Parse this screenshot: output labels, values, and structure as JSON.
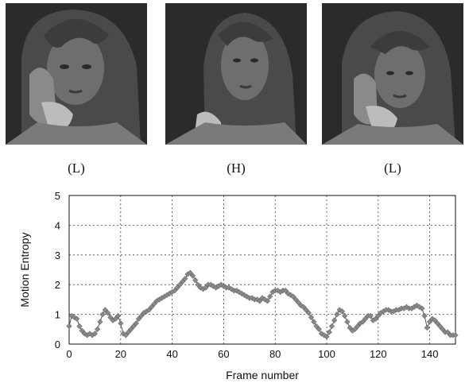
{
  "frames": [
    {
      "label": "(L)",
      "image": "woman-on-phone-photo-1"
    },
    {
      "label": "(H)",
      "image": "woman-on-phone-photo-2"
    },
    {
      "label": "(L)",
      "image": "woman-on-phone-photo-3"
    }
  ],
  "chart_data": {
    "type": "line",
    "title": "",
    "xlabel": "Frame number",
    "ylabel": "Motion Entropy",
    "xlim": [
      0,
      150
    ],
    "ylim": [
      0,
      5
    ],
    "xticks": [
      0,
      20,
      40,
      60,
      80,
      100,
      120,
      140
    ],
    "yticks": [
      0,
      1,
      2,
      3,
      4,
      5
    ],
    "grid": true,
    "marker": "diamond",
    "series": [
      {
        "name": "",
        "x": [
          0,
          1,
          2,
          3,
          4,
          5,
          6,
          7,
          8,
          9,
          10,
          11,
          12,
          13,
          14,
          15,
          16,
          17,
          18,
          19,
          20,
          21,
          22,
          23,
          24,
          25,
          26,
          27,
          28,
          29,
          30,
          31,
          32,
          33,
          34,
          35,
          36,
          37,
          38,
          39,
          40,
          41,
          42,
          43,
          44,
          45,
          46,
          47,
          48,
          49,
          50,
          51,
          52,
          53,
          54,
          55,
          56,
          57,
          58,
          59,
          60,
          61,
          62,
          63,
          64,
          65,
          66,
          67,
          68,
          69,
          70,
          71,
          72,
          73,
          74,
          75,
          76,
          77,
          78,
          79,
          80,
          81,
          82,
          83,
          84,
          85,
          86,
          87,
          88,
          89,
          90,
          91,
          92,
          93,
          94,
          95,
          96,
          97,
          98,
          99,
          100,
          101,
          102,
          103,
          104,
          105,
          106,
          107,
          108,
          109,
          110,
          111,
          112,
          113,
          114,
          115,
          116,
          117,
          118,
          119,
          120,
          121,
          122,
          123,
          124,
          125,
          126,
          127,
          128,
          129,
          130,
          131,
          132,
          133,
          134,
          135,
          136,
          137,
          138,
          139,
          140,
          141,
          142,
          143,
          144,
          145,
          146,
          147,
          148,
          149,
          150
        ],
        "y": [
          0.6,
          0.95,
          0.9,
          0.85,
          0.6,
          0.45,
          0.35,
          0.3,
          0.35,
          0.3,
          0.35,
          0.5,
          0.75,
          1.0,
          1.15,
          1.05,
          0.9,
          0.8,
          0.85,
          0.95,
          0.7,
          0.35,
          0.3,
          0.4,
          0.5,
          0.6,
          0.7,
          0.85,
          0.95,
          1.05,
          1.1,
          1.15,
          1.25,
          1.35,
          1.45,
          1.5,
          1.55,
          1.6,
          1.65,
          1.7,
          1.75,
          1.8,
          1.9,
          2.0,
          2.1,
          2.2,
          2.35,
          2.4,
          2.3,
          2.15,
          2.0,
          1.9,
          1.85,
          1.9,
          2.0,
          2.0,
          1.95,
          1.9,
          1.95,
          2.0,
          1.95,
          1.9,
          1.9,
          1.85,
          1.8,
          1.8,
          1.75,
          1.7,
          1.65,
          1.6,
          1.55,
          1.55,
          1.5,
          1.5,
          1.45,
          1.55,
          1.5,
          1.45,
          1.6,
          1.75,
          1.8,
          1.8,
          1.75,
          1.8,
          1.8,
          1.7,
          1.65,
          1.6,
          1.5,
          1.4,
          1.3,
          1.25,
          1.15,
          1.05,
          0.9,
          0.75,
          0.6,
          0.5,
          0.35,
          0.3,
          0.25,
          0.4,
          0.6,
          0.8,
          1.0,
          1.15,
          1.1,
          0.95,
          0.75,
          0.55,
          0.45,
          0.5,
          0.6,
          0.7,
          0.75,
          0.85,
          0.95,
          0.95,
          0.8,
          0.85,
          0.95,
          1.05,
          1.1,
          1.15,
          1.15,
          1.1,
          1.1,
          1.15,
          1.15,
          1.2,
          1.2,
          1.25,
          1.2,
          1.2,
          1.25,
          1.3,
          1.25,
          1.2,
          0.95,
          0.55,
          0.75,
          0.85,
          0.8,
          0.7,
          0.6,
          0.5,
          0.4,
          0.4,
          0.3,
          0.3,
          0.3
        ]
      }
    ]
  }
}
